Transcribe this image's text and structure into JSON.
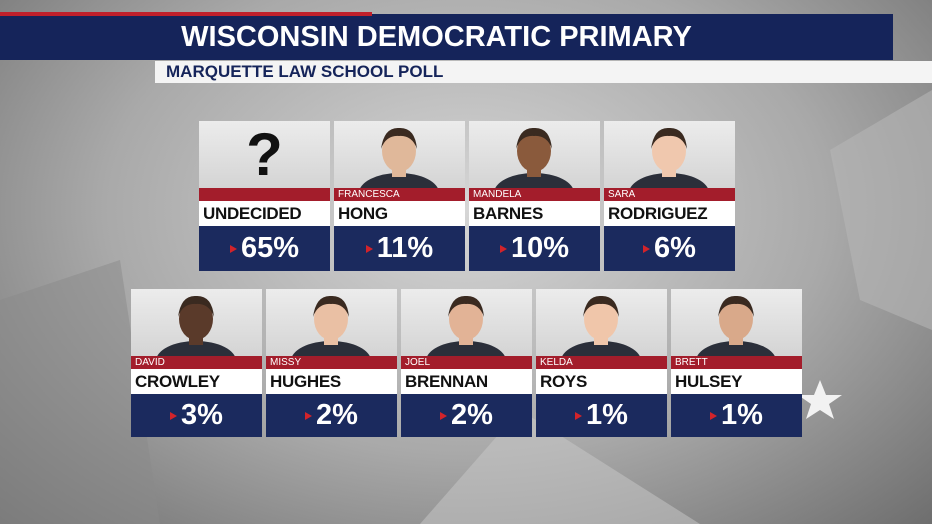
{
  "header": {
    "title": "WISCONSIN DEMOCRATIC PRIMARY",
    "subtitle": "MARQUETTE LAW SCHOOL POLL"
  },
  "rows": [
    [
      {
        "symbol": "?",
        "last": "UNDECIDED",
        "result": "65%"
      },
      {
        "first": "FRANCESCA",
        "last": "HONG",
        "result": "11%"
      },
      {
        "first": "MANDELA",
        "last": "BARNES",
        "result": "10%"
      },
      {
        "first": "SARA",
        "last": "RODRIGUEZ",
        "result": "6%"
      }
    ],
    [
      {
        "first": "DAVID",
        "last": "CROWLEY",
        "result": "3%"
      },
      {
        "first": "MISSY",
        "last": "HUGHES",
        "result": "2%"
      },
      {
        "first": "JOEL",
        "last": "BRENNAN",
        "result": "2%"
      },
      {
        "first": "KELDA",
        "last": "ROYS",
        "result": "1%"
      },
      {
        "first": "BRETT",
        "last": "HULSEY",
        "result": "1%"
      }
    ]
  ]
}
